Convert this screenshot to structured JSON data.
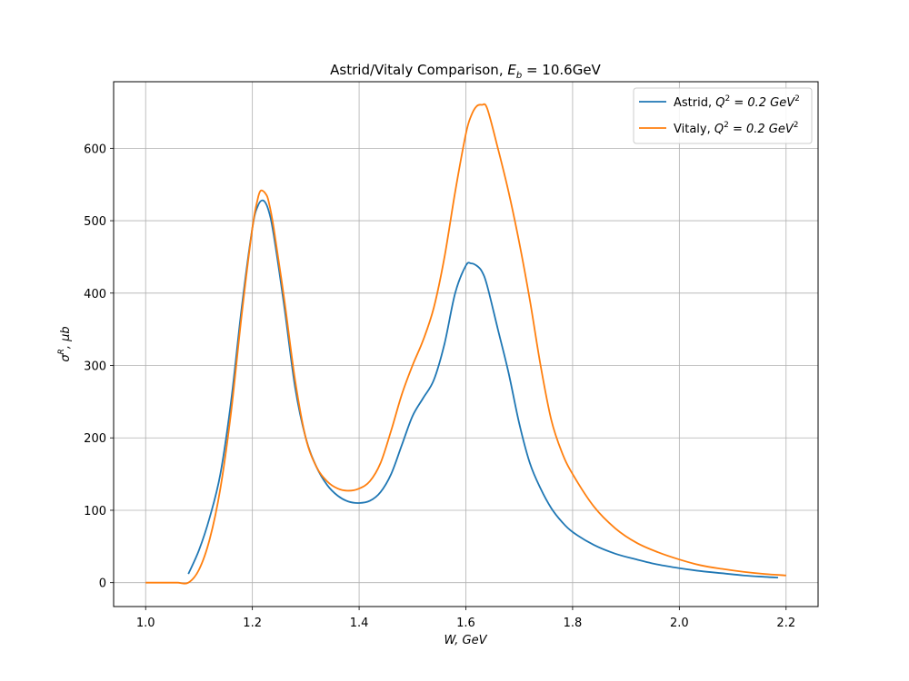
{
  "chart_data": {
    "type": "line",
    "title": {
      "prefix": "Astrid/Vitaly Comparison, ",
      "math": "E",
      "sub": "b",
      "rest": " = 10.6GeV"
    },
    "xlabel": "W, GeV",
    "ylabel": {
      "main": "σ",
      "sup": "R",
      "rest": ", μb"
    },
    "xlim": [
      0.94,
      2.26
    ],
    "ylim": [
      -33,
      692
    ],
    "xticks": [
      1.0,
      1.2,
      1.4,
      1.6,
      1.8,
      2.0,
      2.2
    ],
    "xtick_labels": [
      "1.0",
      "1.2",
      "1.4",
      "1.6",
      "1.8",
      "2.0",
      "2.2"
    ],
    "yticks": [
      0,
      100,
      200,
      300,
      400,
      500,
      600
    ],
    "ytick_labels": [
      "0",
      "100",
      "200",
      "300",
      "400",
      "500",
      "600"
    ],
    "grid": true,
    "legend_position": "top-right",
    "series": [
      {
        "name": "Astrid",
        "legend": {
          "prefix": "Astrid, ",
          "math": "Q",
          "sup": "2",
          "rest": " = 0.2 GeV",
          "sup2": "2"
        },
        "color": "#1f77b4",
        "x": [
          1.08,
          1.1,
          1.12,
          1.14,
          1.16,
          1.18,
          1.2,
          1.21,
          1.22,
          1.23,
          1.24,
          1.26,
          1.28,
          1.3,
          1.32,
          1.34,
          1.36,
          1.38,
          1.4,
          1.42,
          1.44,
          1.46,
          1.48,
          1.5,
          1.52,
          1.54,
          1.56,
          1.58,
          1.6,
          1.61,
          1.62,
          1.63,
          1.64,
          1.66,
          1.68,
          1.7,
          1.72,
          1.74,
          1.76,
          1.78,
          1.8,
          1.84,
          1.88,
          1.92,
          1.96,
          2.0,
          2.04,
          2.08,
          2.12,
          2.16,
          2.185
        ],
        "y": [
          12,
          45,
          90,
          150,
          250,
          380,
          490,
          520,
          528,
          515,
          480,
          380,
          270,
          200,
          160,
          135,
          120,
          112,
          110,
          113,
          125,
          150,
          190,
          230,
          255,
          280,
          330,
          400,
          438,
          441,
          438,
          430,
          410,
          350,
          290,
          220,
          165,
          130,
          103,
          84,
          70,
          52,
          40,
          32,
          25,
          20,
          16,
          13,
          10,
          8,
          7
        ]
      },
      {
        "name": "Vitaly",
        "legend": {
          "prefix": "Vitaly, ",
          "math": "Q",
          "sup": "2",
          "rest": " = 0.2 GeV",
          "sup2": "2"
        },
        "color": "#ff7f0e",
        "x": [
          1.0,
          1.02,
          1.04,
          1.06,
          1.08,
          1.1,
          1.12,
          1.14,
          1.16,
          1.18,
          1.2,
          1.21,
          1.215,
          1.22,
          1.225,
          1.23,
          1.24,
          1.26,
          1.28,
          1.3,
          1.32,
          1.34,
          1.36,
          1.38,
          1.4,
          1.42,
          1.44,
          1.46,
          1.48,
          1.5,
          1.52,
          1.54,
          1.56,
          1.58,
          1.6,
          1.61,
          1.62,
          1.63,
          1.64,
          1.66,
          1.68,
          1.7,
          1.72,
          1.74,
          1.76,
          1.78,
          1.8,
          1.84,
          1.88,
          1.92,
          1.96,
          2.0,
          2.04,
          2.08,
          2.12,
          2.16,
          2.2
        ],
        "y": [
          0,
          0,
          0,
          0,
          0,
          18,
          60,
          130,
          235,
          370,
          490,
          530,
          541,
          541,
          537,
          528,
          490,
          390,
          280,
          200,
          160,
          140,
          130,
          127,
          130,
          140,
          165,
          210,
          260,
          300,
          335,
          380,
          450,
          540,
          620,
          645,
          658,
          660,
          655,
          600,
          540,
          470,
          390,
          300,
          225,
          180,
          150,
          105,
          75,
          55,
          42,
          32,
          24,
          19,
          15,
          12,
          10
        ]
      }
    ]
  }
}
